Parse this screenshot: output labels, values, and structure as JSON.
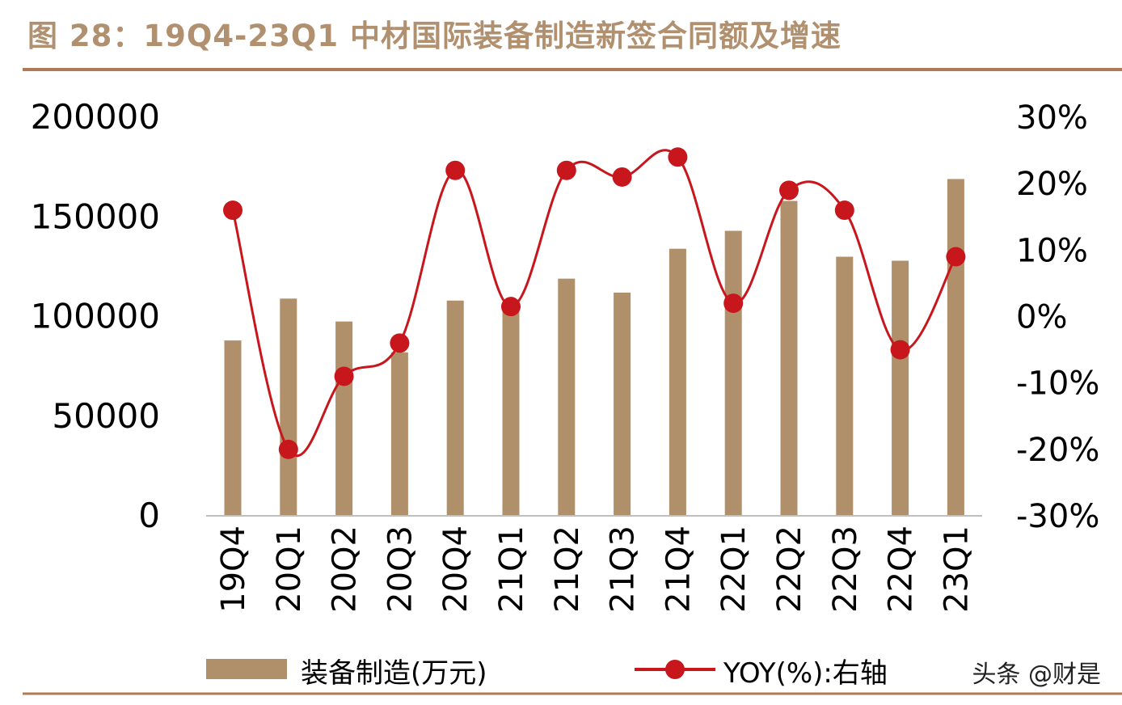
{
  "title": "图 28：19Q4-23Q1 中材国际装备制造新签合同额及增速",
  "watermark": "头条 @财是",
  "colors": {
    "bar": "#b0906a",
    "line": "#c8161d",
    "rule": "#b07a56",
    "title": "#b0906f",
    "axis_text": "#000000",
    "baseline": "#bfbfbf"
  },
  "chart_data": {
    "type": "bar",
    "categories": [
      "19Q4",
      "20Q1",
      "20Q2",
      "20Q3",
      "20Q4",
      "21Q1",
      "21Q2",
      "21Q3",
      "21Q4",
      "22Q1",
      "22Q2",
      "22Q3",
      "22Q4",
      "23Q1"
    ],
    "series": [
      {
        "name": "装备制造(万元)",
        "type": "bar",
        "axis": "left",
        "values": [
          88000,
          109000,
          97500,
          82000,
          108000,
          105000,
          119000,
          112000,
          134000,
          143000,
          158000,
          130000,
          128000,
          169000
        ]
      },
      {
        "name": "YOY(%):右轴",
        "type": "line",
        "axis": "right",
        "values": [
          16,
          -20,
          -9,
          -4,
          22,
          1.5,
          22,
          21,
          24,
          2,
          19,
          16,
          -5,
          9
        ]
      }
    ],
    "y_left": {
      "min": 0,
      "max": 200000,
      "ticks": [
        "0",
        "50000",
        "100000",
        "150000",
        "200000"
      ]
    },
    "y_right": {
      "min": -30,
      "max": 30,
      "ticks": [
        "-30%",
        "-20%",
        "-10%",
        "0%",
        "10%",
        "20%",
        "30%"
      ]
    },
    "legend_position": "bottom",
    "grid": false
  }
}
